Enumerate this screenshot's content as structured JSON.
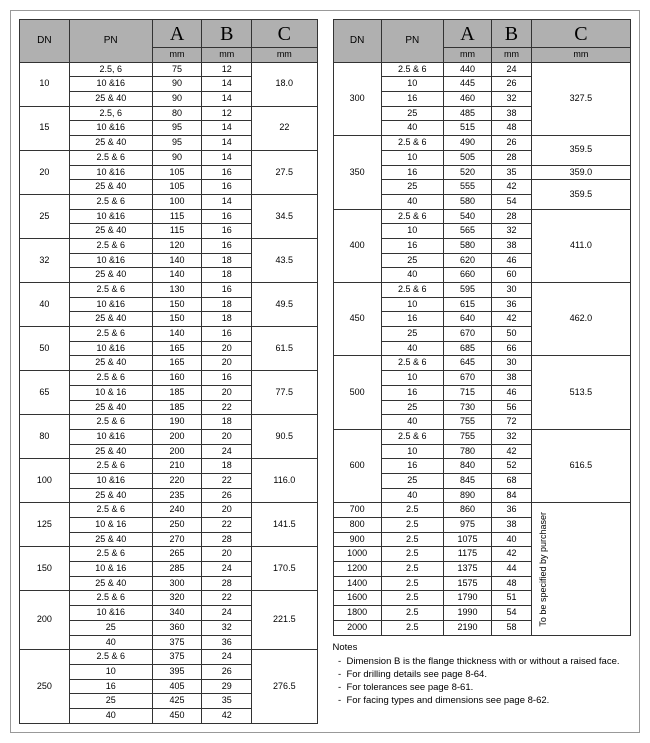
{
  "headers": {
    "dn": "DN",
    "pn": "PN",
    "a": "A",
    "b": "B",
    "c": "C",
    "mm": "mm"
  },
  "left": [
    {
      "dn": "10",
      "rows": [
        [
          "2.5, 6",
          "75",
          "12"
        ],
        [
          "10 &16",
          "90",
          "14"
        ],
        [
          "25 & 40",
          "90",
          "14"
        ]
      ],
      "c": "18.0"
    },
    {
      "dn": "15",
      "rows": [
        [
          "2.5, 6",
          "80",
          "12"
        ],
        [
          "10 &16",
          "95",
          "14"
        ],
        [
          "25 & 40",
          "95",
          "14"
        ]
      ],
      "c": "22"
    },
    {
      "dn": "20",
      "rows": [
        [
          "2.5 & 6",
          "90",
          "14"
        ],
        [
          "10 &16",
          "105",
          "16"
        ],
        [
          "25 & 40",
          "105",
          "16"
        ]
      ],
      "c": "27.5"
    },
    {
      "dn": "25",
      "rows": [
        [
          "2.5 & 6",
          "100",
          "14"
        ],
        [
          "10 &16",
          "115",
          "16"
        ],
        [
          "25 & 40",
          "115",
          "16"
        ]
      ],
      "c": "34.5"
    },
    {
      "dn": "32",
      "rows": [
        [
          "2.5 & 6",
          "120",
          "16"
        ],
        [
          "10 &16",
          "140",
          "18"
        ],
        [
          "25 & 40",
          "140",
          "18"
        ]
      ],
      "c": "43.5"
    },
    {
      "dn": "40",
      "rows": [
        [
          "2.5 & 6",
          "130",
          "16"
        ],
        [
          "10 &16",
          "150",
          "18"
        ],
        [
          "25 & 40",
          "150",
          "18"
        ]
      ],
      "c": "49.5"
    },
    {
      "dn": "50",
      "rows": [
        [
          "2.5 & 6",
          "140",
          "16"
        ],
        [
          "10 &16",
          "165",
          "20"
        ],
        [
          "25 & 40",
          "165",
          "20"
        ]
      ],
      "c": "61.5"
    },
    {
      "dn": "65",
      "rows": [
        [
          "2.5 & 6",
          "160",
          "16"
        ],
        [
          "10 & 16",
          "185",
          "20"
        ],
        [
          "25 & 40",
          "185",
          "22"
        ]
      ],
      "c": "77.5"
    },
    {
      "dn": "80",
      "rows": [
        [
          "2.5 & 6",
          "190",
          "18"
        ],
        [
          "10 &16",
          "200",
          "20"
        ],
        [
          "25 & 40",
          "200",
          "24"
        ]
      ],
      "c": "90.5"
    },
    {
      "dn": "100",
      "rows": [
        [
          "2.5 & 6",
          "210",
          "18"
        ],
        [
          "10 &16",
          "220",
          "22"
        ],
        [
          "25 & 40",
          "235",
          "26"
        ]
      ],
      "c": "116.0"
    },
    {
      "dn": "125",
      "rows": [
        [
          "2.5 & 6",
          "240",
          "20"
        ],
        [
          "10 & 16",
          "250",
          "22"
        ],
        [
          "25 & 40",
          "270",
          "28"
        ]
      ],
      "c": "141.5"
    },
    {
      "dn": "150",
      "rows": [
        [
          "2.5 & 6",
          "265",
          "20"
        ],
        [
          "10 & 16",
          "285",
          "24"
        ],
        [
          "25 & 40",
          "300",
          "28"
        ]
      ],
      "c": "170.5"
    },
    {
      "dn": "200",
      "rows": [
        [
          "2.5 & 6",
          "320",
          "22"
        ],
        [
          "10 &16",
          "340",
          "24"
        ],
        [
          "25",
          "360",
          "32"
        ],
        [
          "40",
          "375",
          "36"
        ]
      ],
      "c": "221.5"
    },
    {
      "dn": "250",
      "rows": [
        [
          "2.5 & 6",
          "375",
          "24"
        ],
        [
          "10",
          "395",
          "26"
        ],
        [
          "16",
          "405",
          "29"
        ],
        [
          "25",
          "425",
          "35"
        ],
        [
          "40",
          "450",
          "42"
        ]
      ],
      "c": "276.5"
    }
  ],
  "right_grouped": [
    {
      "dn": "300",
      "rows": [
        [
          "2.5 & 6",
          "440",
          "24"
        ],
        [
          "10",
          "445",
          "26"
        ],
        [
          "16",
          "460",
          "32"
        ],
        [
          "25",
          "485",
          "38"
        ],
        [
          "40",
          "515",
          "48"
        ]
      ],
      "c": "327.5"
    },
    {
      "dn": "400",
      "rows": [
        [
          "2.5 & 6",
          "540",
          "28"
        ],
        [
          "10",
          "565",
          "32"
        ],
        [
          "16",
          "580",
          "38"
        ],
        [
          "25",
          "620",
          "46"
        ],
        [
          "40",
          "660",
          "60"
        ]
      ],
      "c": "411.0"
    },
    {
      "dn": "450",
      "rows": [
        [
          "2.5 & 6",
          "595",
          "30"
        ],
        [
          "10",
          "615",
          "36"
        ],
        [
          "16",
          "640",
          "42"
        ],
        [
          "25",
          "670",
          "50"
        ],
        [
          "40",
          "685",
          "66"
        ]
      ],
      "c": "462.0"
    },
    {
      "dn": "500",
      "rows": [
        [
          "2.5 & 6",
          "645",
          "30"
        ],
        [
          "10",
          "670",
          "38"
        ],
        [
          "16",
          "715",
          "46"
        ],
        [
          "25",
          "730",
          "56"
        ],
        [
          "40",
          "755",
          "72"
        ]
      ],
      "c": "513.5"
    },
    {
      "dn": "600",
      "rows": [
        [
          "2.5 & 6",
          "755",
          "32"
        ],
        [
          "10",
          "780",
          "42"
        ],
        [
          "16",
          "840",
          "52"
        ],
        [
          "25",
          "845",
          "68"
        ],
        [
          "40",
          "890",
          "84"
        ]
      ],
      "c": "616.5"
    }
  ],
  "right_350": {
    "dn": "350",
    "rows": [
      {
        "pn": "2.5 & 6",
        "a": "490",
        "b": "26",
        "c": "359.5",
        "cspan": 2
      },
      {
        "pn": "10",
        "a": "505",
        "b": "28"
      },
      {
        "pn": "16",
        "a": "520",
        "b": "35",
        "c": "359.0",
        "cspan": 1
      },
      {
        "pn": "25",
        "a": "555",
        "b": "42",
        "c": "359.5",
        "cspan": 2
      },
      {
        "pn": "40",
        "a": "580",
        "b": "54"
      }
    ]
  },
  "right_simple": [
    {
      "dn": "700",
      "pn": "2.5",
      "a": "860",
      "b": "36"
    },
    {
      "dn": "800",
      "pn": "2.5",
      "a": "975",
      "b": "38"
    },
    {
      "dn": "900",
      "pn": "2.5",
      "a": "1075",
      "b": "40"
    },
    {
      "dn": "1000",
      "pn": "2.5",
      "a": "1175",
      "b": "42"
    },
    {
      "dn": "1200",
      "pn": "2.5",
      "a": "1375",
      "b": "44"
    },
    {
      "dn": "1400",
      "pn": "2.5",
      "a": "1575",
      "b": "48"
    },
    {
      "dn": "1600",
      "pn": "2.5",
      "a": "1790",
      "b": "51"
    },
    {
      "dn": "1800",
      "pn": "2.5",
      "a": "1990",
      "b": "54"
    },
    {
      "dn": "2000",
      "pn": "2.5",
      "a": "2190",
      "b": "58"
    }
  ],
  "right_simple_c": "To be specified by purchaser",
  "notes_title": "Notes",
  "notes": [
    "Dimension B is the flange thickness with or without a raised face.",
    "For drilling details see page 8-64.",
    "For tolerances see page 8-61.",
    "For facing types and dimensions see page 8-62."
  ]
}
